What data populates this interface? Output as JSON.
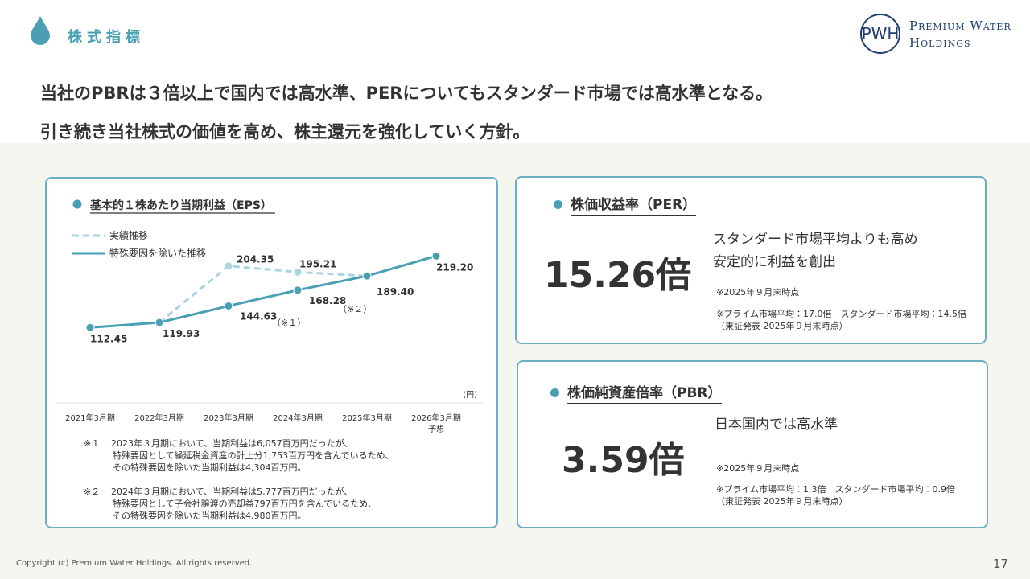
{
  "header": {
    "title": "株式指標",
    "logo_monogram": "PWH",
    "logo_line1": "Premium Water",
    "logo_line2": "Holdings"
  },
  "headline": [
    "当社のPBRは３倍以上で国内では高水準、PERについてもスタンダード市場では高水準となる。",
    "引き続き当社株式の価値を高め、株主還元を強化していく方針。"
  ],
  "chart_data": {
    "type": "line",
    "title": "基本的１株あたり当期利益（EPS）",
    "categories": [
      "2021年3月期",
      "2022年3月期",
      "2023年3月期",
      "2024年3月期",
      "2025年3月期",
      "2026年3月期"
    ],
    "forecast_label": "予想",
    "unit_label": "(円)",
    "ylim": [
      0,
      240
    ],
    "series": [
      {
        "name": "実績推移",
        "color": "#a9d4e0",
        "dashed": true,
        "values": [
          null,
          119.93,
          204.35,
          195.21,
          189.4,
          null
        ],
        "value_labels": [
          null,
          null,
          "204.35",
          "195.21",
          null,
          null
        ]
      },
      {
        "name": "特殊要因を除いた推移",
        "color": "#4a9fb5",
        "dashed": false,
        "values": [
          112.45,
          119.93,
          144.63,
          168.28,
          189.4,
          219.2
        ],
        "value_labels": [
          "112.45",
          "119.93",
          "144.63",
          "168.28",
          "189.40",
          "219.20"
        ]
      }
    ],
    "annotations": [
      "（※１）",
      "（※２）"
    ]
  },
  "notes": [
    {
      "mark": "※１",
      "lines": [
        "2023年３月期において、当期利益は6,057百万円だったが、",
        "特殊要因として繰延税金資産の計上分1,753百万円を含んでいるため、",
        "その特殊要因を除いた当期利益は4,304百万円。"
      ]
    },
    {
      "mark": "※２",
      "lines": [
        "2024年３月期において、当期利益は5,777百万円だったが、",
        "特殊要因として子会社譲渡の売却益797百万円を含んでいるため、",
        "その特殊要因を除いた当期利益は4,980百万円。"
      ]
    }
  ],
  "per": {
    "title": "株価収益率（PER）",
    "value": "15.26倍",
    "description": [
      "スタンダード市場平均よりも高め",
      "安定的に利益を創出"
    ],
    "note_date": "※2025年９月末時点",
    "note_avg": "※プライム市場平均：17.0倍　スタンダード市場平均：14.5倍",
    "note_source": "（東証発表 2025年９月末時点）"
  },
  "pbr": {
    "title": "株価純資産倍率（PBR）",
    "value": "3.59倍",
    "description": [
      "日本国内では高水準"
    ],
    "note_date": "※2025年９月末時点",
    "note_avg": "※プライム市場平均：1.3倍　スタンダード市場平均：0.9倍",
    "note_source": "（東証発表 2025年９月末時点）"
  },
  "footer": {
    "copyright": "Copyright (c) Premium Water Holdings. All rights reserved.",
    "page": "17"
  }
}
